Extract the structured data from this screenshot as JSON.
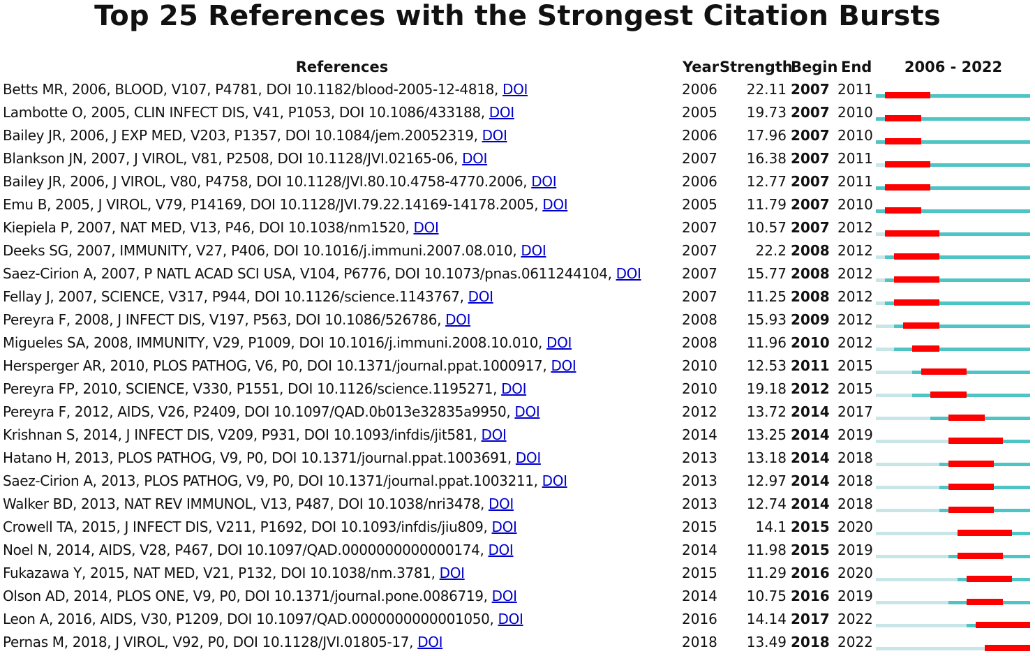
{
  "title": "Top 25 References with the Strongest Citation Bursts",
  "headers": {
    "references": "References",
    "year": "Year",
    "strength": "Strength",
    "begin": "Begin",
    "end": "End",
    "range": "2006 - 2022"
  },
  "colors": {
    "burst": "#ff0000",
    "active": "#4ec4c4",
    "inactive": "#c8e6e8",
    "link": "#0000cc"
  },
  "chart_data": {
    "type": "table",
    "title": "Top 25 References with the Strongest Citation Bursts",
    "timeline": {
      "start": 2006,
      "end": 2022
    },
    "columns": [
      "References",
      "Year",
      "Strength",
      "Begin",
      "End",
      "2006 - 2022"
    ],
    "rows": [
      {
        "ref": "Betts MR, 2006, BLOOD, V107, P4781, DOI 10.1182/blood-2005-12-4818,",
        "link": "DOI",
        "year": 2006,
        "strength": "22.11",
        "begin": 2007,
        "end": 2011
      },
      {
        "ref": "Lambotte O, 2005, CLIN INFECT DIS, V41, P1053, DOI 10.1086/433188,",
        "link": "DOI",
        "year": 2005,
        "strength": "19.73",
        "begin": 2007,
        "end": 2010
      },
      {
        "ref": "Bailey JR, 2006, J EXP MED, V203, P1357, DOI 10.1084/jem.20052319,",
        "link": "DOI",
        "year": 2006,
        "strength": "17.96",
        "begin": 2007,
        "end": 2010
      },
      {
        "ref": "Blankson JN, 2007, J VIROL, V81, P2508, DOI 10.1128/JVI.02165-06,",
        "link": "DOI",
        "year": 2007,
        "strength": "16.38",
        "begin": 2007,
        "end": 2011
      },
      {
        "ref": "Bailey JR, 2006, J VIROL, V80, P4758, DOI 10.1128/JVI.80.10.4758-4770.2006,",
        "link": "DOI",
        "year": 2006,
        "strength": "12.77",
        "begin": 2007,
        "end": 2011
      },
      {
        "ref": "Emu B, 2005, J VIROL, V79, P14169, DOI 10.1128/JVI.79.22.14169-14178.2005,",
        "link": "DOI",
        "year": 2005,
        "strength": "11.79",
        "begin": 2007,
        "end": 2010
      },
      {
        "ref": "Kiepiela P, 2007, NAT MED, V13, P46, DOI 10.1038/nm1520,",
        "link": "DOI",
        "year": 2007,
        "strength": "10.57",
        "begin": 2007,
        "end": 2012
      },
      {
        "ref": "Deeks SG, 2007, IMMUNITY, V27, P406, DOI 10.1016/j.immuni.2007.08.010,",
        "link": "DOI",
        "year": 2007,
        "strength": "22.2",
        "begin": 2008,
        "end": 2012
      },
      {
        "ref": "Saez-Cirion A, 2007, P NATL ACAD SCI USA, V104, P6776, DOI 10.1073/pnas.0611244104,",
        "link": "DOI",
        "year": 2007,
        "strength": "15.77",
        "begin": 2008,
        "end": 2012
      },
      {
        "ref": "Fellay J, 2007, SCIENCE, V317, P944, DOI 10.1126/science.1143767,",
        "link": "DOI",
        "year": 2007,
        "strength": "11.25",
        "begin": 2008,
        "end": 2012
      },
      {
        "ref": "Pereyra F, 2008, J INFECT DIS, V197, P563, DOI 10.1086/526786,",
        "link": "DOI",
        "year": 2008,
        "strength": "15.93",
        "begin": 2009,
        "end": 2012
      },
      {
        "ref": "Migueles SA, 2008, IMMUNITY, V29, P1009, DOI 10.1016/j.immuni.2008.10.010,",
        "link": "DOI",
        "year": 2008,
        "strength": "11.96",
        "begin": 2010,
        "end": 2012
      },
      {
        "ref": "Hersperger AR, 2010, PLOS PATHOG, V6, P0, DOI 10.1371/journal.ppat.1000917,",
        "link": "DOI",
        "year": 2010,
        "strength": "12.53",
        "begin": 2011,
        "end": 2015
      },
      {
        "ref": "Pereyra FP, 2010, SCIENCE, V330, P1551, DOI 10.1126/science.1195271,",
        "link": "DOI",
        "year": 2010,
        "strength": "19.18",
        "begin": 2012,
        "end": 2015
      },
      {
        "ref": "Pereyra F, 2012, AIDS, V26, P2409, DOI 10.1097/QAD.0b013e32835a9950,",
        "link": "DOI",
        "year": 2012,
        "strength": "13.72",
        "begin": 2014,
        "end": 2017
      },
      {
        "ref": "Krishnan S, 2014, J INFECT DIS, V209, P931, DOI 10.1093/infdis/jit581,",
        "link": "DOI",
        "year": 2014,
        "strength": "13.25",
        "begin": 2014,
        "end": 2019
      },
      {
        "ref": "Hatano H, 2013, PLOS PATHOG, V9, P0, DOI 10.1371/journal.ppat.1003691,",
        "link": "DOI",
        "year": 2013,
        "strength": "13.18",
        "begin": 2014,
        "end": 2018
      },
      {
        "ref": "Saez-Cirion A, 2013, PLOS PATHOG, V9, P0, DOI 10.1371/journal.ppat.1003211,",
        "link": "DOI",
        "year": 2013,
        "strength": "12.97",
        "begin": 2014,
        "end": 2018
      },
      {
        "ref": "Walker BD, 2013, NAT REV IMMUNOL, V13, P487, DOI 10.1038/nri3478,",
        "link": "DOI",
        "year": 2013,
        "strength": "12.74",
        "begin": 2014,
        "end": 2018
      },
      {
        "ref": "Crowell TA, 2015, J INFECT DIS, V211, P1692, DOI 10.1093/infdis/jiu809,",
        "link": "DOI",
        "year": 2015,
        "strength": "14.1",
        "begin": 2015,
        "end": 2020
      },
      {
        "ref": "Noel N, 2014, AIDS, V28, P467, DOI 10.1097/QAD.0000000000000174,",
        "link": "DOI",
        "year": 2014,
        "strength": "11.98",
        "begin": 2015,
        "end": 2019
      },
      {
        "ref": "Fukazawa Y, 2015, NAT MED, V21, P132, DOI 10.1038/nm.3781,",
        "link": "DOI",
        "year": 2015,
        "strength": "11.29",
        "begin": 2016,
        "end": 2020
      },
      {
        "ref": "Olson AD, 2014, PLOS ONE, V9, P0, DOI 10.1371/journal.pone.0086719,",
        "link": "DOI",
        "year": 2014,
        "strength": "10.75",
        "begin": 2016,
        "end": 2019
      },
      {
        "ref": "Leon A, 2016, AIDS, V30, P1209, DOI 10.1097/QAD.0000000000001050,",
        "link": "DOI",
        "year": 2016,
        "strength": "14.14",
        "begin": 2017,
        "end": 2022
      },
      {
        "ref": "Pernas M, 2018, J VIROL, V92, P0, DOI 10.1128/JVI.01805-17,",
        "link": "DOI",
        "year": 2018,
        "strength": "13.49",
        "begin": 2018,
        "end": 2022
      }
    ]
  }
}
